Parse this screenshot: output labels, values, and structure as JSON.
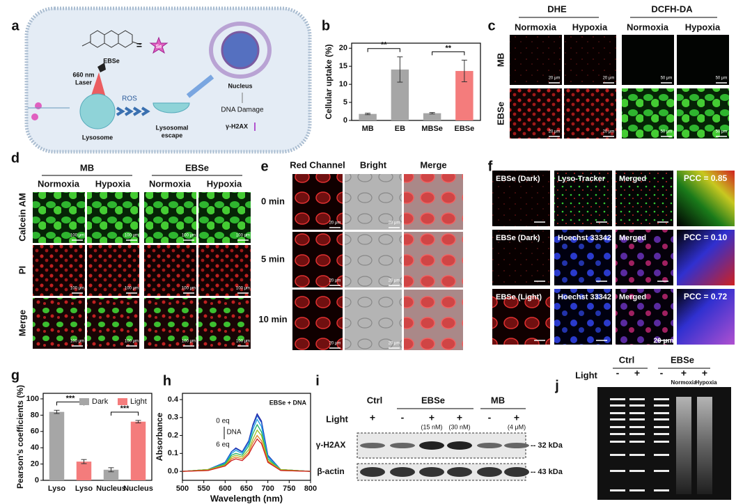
{
  "panel_labels": [
    "a",
    "b",
    "c",
    "d",
    "e",
    "f",
    "g",
    "h",
    "i",
    "j"
  ],
  "panel_a": {
    "molecule": "EBSe",
    "equals": "=",
    "element": "Se",
    "laser": [
      "660 nm",
      "Laser"
    ],
    "ros": "ROS",
    "lysosome": "Lysosome",
    "escape": [
      "Lysosomal",
      "escape"
    ],
    "nucleus": "Nucleus",
    "damage": "DNA Damage",
    "marker": "γ-H2AX"
  },
  "chart_data": [
    {
      "type": "bar",
      "ylabel": "Cellular uptake (%)",
      "categories": [
        "MB",
        "EB",
        "MBSe",
        "EBSe"
      ],
      "values": [
        1.8,
        14.1,
        2.0,
        13.7
      ],
      "errors": [
        0.2,
        3.5,
        0.2,
        3.0
      ],
      "colors": [
        "#a6a6a6",
        "#a6a6a6",
        "#a6a6a6",
        "#f47c7c"
      ],
      "ylim": [
        0,
        21.4
      ],
      "yticks": [
        0,
        5,
        10,
        15,
        20
      ],
      "annotations": [
        "**",
        "**"
      ]
    },
    {
      "type": "bar",
      "ylabel": "Pearson's coefficients (%)",
      "categories": [
        "Lyso",
        "Lyso",
        "Nucleus",
        "Nucleus"
      ],
      "series": [
        {
          "name": "Dark",
          "color": "#a6a6a6",
          "values": [
            84,
            null,
            13,
            null
          ],
          "errors": [
            2,
            null,
            2.5,
            null
          ]
        },
        {
          "name": "Light",
          "color": "#f47c7c",
          "values": [
            null,
            23,
            null,
            72
          ],
          "errors": [
            null,
            2.5,
            null,
            1.5
          ]
        }
      ],
      "ylim": [
        0,
        106.8
      ],
      "yticks": [
        0,
        20,
        40,
        60,
        80,
        100
      ],
      "legend": "upper right",
      "annotations": [
        "***",
        "***"
      ]
    },
    {
      "type": "line",
      "xlabel": "Wavelength (nm)",
      "ylabel": "Absorbance",
      "x": [
        500,
        560,
        600,
        615,
        625,
        640,
        655,
        665,
        675,
        685,
        700,
        730,
        800
      ],
      "series": [
        {
          "color": "#1a1aa0",
          "values": [
            0,
            0.01,
            0.05,
            0.11,
            0.13,
            0.11,
            0.17,
            0.26,
            0.32,
            0.28,
            0.09,
            0.01,
            0
          ]
        },
        {
          "color": "#1f5fd0",
          "values": [
            0,
            0.01,
            0.05,
            0.11,
            0.126,
            0.107,
            0.165,
            0.252,
            0.31,
            0.272,
            0.087,
            0.01,
            0
          ]
        },
        {
          "color": "#1fa0e0",
          "values": [
            0,
            0.01,
            0.045,
            0.1,
            0.117,
            0.1,
            0.153,
            0.234,
            0.29,
            0.25,
            0.08,
            0.01,
            0
          ]
        },
        {
          "color": "#20b060",
          "values": [
            0,
            0.01,
            0.04,
            0.09,
            0.1,
            0.09,
            0.14,
            0.21,
            0.26,
            0.22,
            0.07,
            0.01,
            0
          ]
        },
        {
          "color": "#a0c020",
          "values": [
            0,
            0.01,
            0.035,
            0.08,
            0.09,
            0.08,
            0.12,
            0.18,
            0.23,
            0.2,
            0.06,
            0.01,
            0
          ]
        },
        {
          "color": "#e08020",
          "values": [
            0,
            0.005,
            0.03,
            0.07,
            0.08,
            0.07,
            0.105,
            0.16,
            0.2,
            0.17,
            0.055,
            0.005,
            0
          ]
        },
        {
          "color": "#d02020",
          "values": [
            0,
            0.005,
            0.03,
            0.06,
            0.07,
            0.06,
            0.095,
            0.14,
            0.18,
            0.155,
            0.05,
            0.005,
            0
          ]
        }
      ],
      "xlim": [
        500,
        800
      ],
      "ylim": [
        -0.05,
        0.435
      ],
      "xticks": [
        500,
        550,
        600,
        650,
        700,
        750,
        800
      ],
      "yticks": [
        {
          "value": 0,
          "label": "0.0"
        },
        0.1,
        0.2,
        0.3,
        0.4
      ],
      "annotations": [
        "EBSe + DNA",
        "0 eq",
        "DNA",
        "6 eq"
      ]
    }
  ],
  "panel_c": {
    "groups": [
      "DHE",
      "DCFH-DA"
    ],
    "conditions": [
      "Normoxia",
      "Hypoxia",
      "Normoxia",
      "Hypoxia"
    ],
    "rows": [
      "MB",
      "EBSe"
    ],
    "scale_bars": [
      "20 μm",
      "50 μm"
    ]
  },
  "panel_d": {
    "groups": [
      "MB",
      "EBSe"
    ],
    "conditions": [
      "Normoxia",
      "Hypoxia",
      "Normoxia",
      "Hypoxia"
    ],
    "rows": [
      "Calcein AM",
      "PI",
      "Merge"
    ],
    "scale_bar": "100 μm"
  },
  "panel_e": {
    "columns": [
      "Red Channel",
      "Bright",
      "Merge"
    ],
    "rows": [
      "0 min",
      "5 min",
      "10 min"
    ],
    "scale_bar": "20 μm"
  },
  "panel_f": {
    "rows": [
      [
        "EBSe (Dark)",
        "Lyso-Tracker",
        "Merged",
        "PCC = 0.85"
      ],
      [
        "EBSe (Dark)",
        "Hoechst 33342",
        "Merged",
        "PCC = 0.10"
      ],
      [
        "EBSe (Light)",
        "Hoechst 33342",
        "Merged",
        "PCC = 0.72"
      ]
    ],
    "scale_bar": "20 μm"
  },
  "panel_i": {
    "groups": [
      "Ctrl",
      "EBSe",
      "MB"
    ],
    "light": "Light",
    "signs": [
      "+",
      "-",
      "+",
      "+",
      "-",
      "+"
    ],
    "doses": [
      "(15 nM)",
      "(30 nM)",
      "(4 μM)"
    ],
    "proteins": [
      "γ-H2AX",
      "β-actin"
    ],
    "sizes": [
      "-- 32 kDa",
      "-- 43 kDa"
    ]
  },
  "panel_j": {
    "groups": [
      "Ctrl",
      "EBSe"
    ],
    "light": "Light",
    "signs": [
      "-",
      "+",
      "-",
      "+",
      "+"
    ],
    "conditions": [
      "Normoxia",
      "Hypoxia"
    ]
  }
}
